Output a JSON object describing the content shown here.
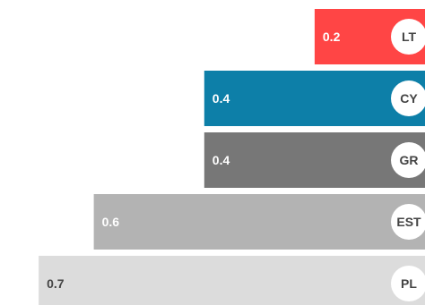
{
  "chart_data": {
    "type": "bar",
    "orientation": "horizontal",
    "bar_alignment": "right",
    "xlim": [
      0,
      0.77
    ],
    "grid": false,
    "legend": "none",
    "categories": [
      "LT",
      "CY",
      "GR",
      "EST",
      "PL"
    ],
    "values": [
      0.2,
      0.4,
      0.4,
      0.6,
      0.7
    ],
    "value_labels": [
      "0.2",
      "0.4",
      "0.4",
      "0.6",
      "0.7"
    ],
    "colors": [
      "#ff4545",
      "#0d7fa8",
      "#777777",
      "#b3b3b3",
      "#dcdcdc"
    ],
    "value_label_colors": [
      "#ffffff",
      "#ffffff",
      "#ffffff",
      "#ffffff",
      "#444444"
    ],
    "label_text_color": "#444444",
    "badge_color": "#ffffff"
  }
}
